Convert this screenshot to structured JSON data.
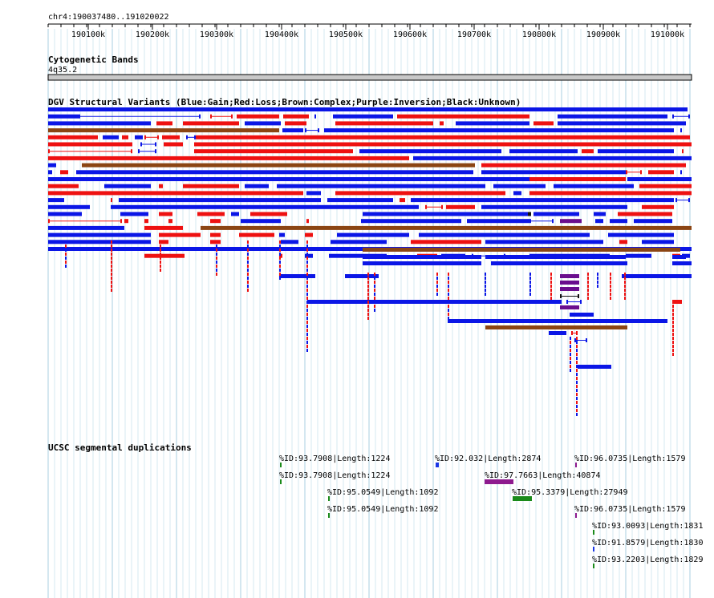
{
  "ruler": {
    "location": "chr4:190037480..191020022",
    "ticks": [
      "190100k",
      "190200k",
      "190300k",
      "190400k",
      "190500k",
      "190600k",
      "190700k",
      "190800k",
      "190900k",
      "191000k"
    ]
  },
  "cytoband": {
    "title": "Cytogenetic Bands",
    "band": "4q35.2"
  },
  "dgv": {
    "title": "DGV Structural Variants (Blue:Gain;Red:Loss;Brown:Complex;Purple:Inversion;Black:Unknown)",
    "colors": {
      "gain": "#0b16e6",
      "loss": "#ee1111",
      "complex": "#8b4513",
      "inversion": "#6a0f8e",
      "unknown": "#111111"
    }
  },
  "segdup": {
    "title": "UCSC segmental duplications",
    "items": [
      {
        "label": "%ID:93.7908|Length:1224",
        "color": "#1a8a1a"
      },
      {
        "label": "%ID:92.032|Length:2874",
        "color": "#1a36e6"
      },
      {
        "label": "%ID:96.0735|Length:1579",
        "color": "#8e1a8e"
      },
      {
        "label": "%ID:93.7908|Length:1224",
        "color": "#1a8a1a"
      },
      {
        "label": "%ID:97.7663|Length:40874",
        "color": "#8e1a8e"
      },
      {
        "label": "%ID:95.0549|Length:1092",
        "color": "#1a8a1a"
      },
      {
        "label": "%ID:95.3379|Length:27949",
        "color": "#1a8a1a"
      },
      {
        "label": "%ID:95.0549|Length:1092",
        "color": "#1a8a1a"
      },
      {
        "label": "%ID:96.0735|Length:1579",
        "color": "#8e1a8e"
      },
      {
        "label": "%ID:93.0093|Length:1831",
        "color": "#1a8a1a"
      },
      {
        "label": "%ID:91.8579|Length:1830",
        "color": "#1a36e6"
      },
      {
        "label": "%ID:93.2203|Length:1829",
        "color": "#1a8a1a"
      }
    ]
  }
}
